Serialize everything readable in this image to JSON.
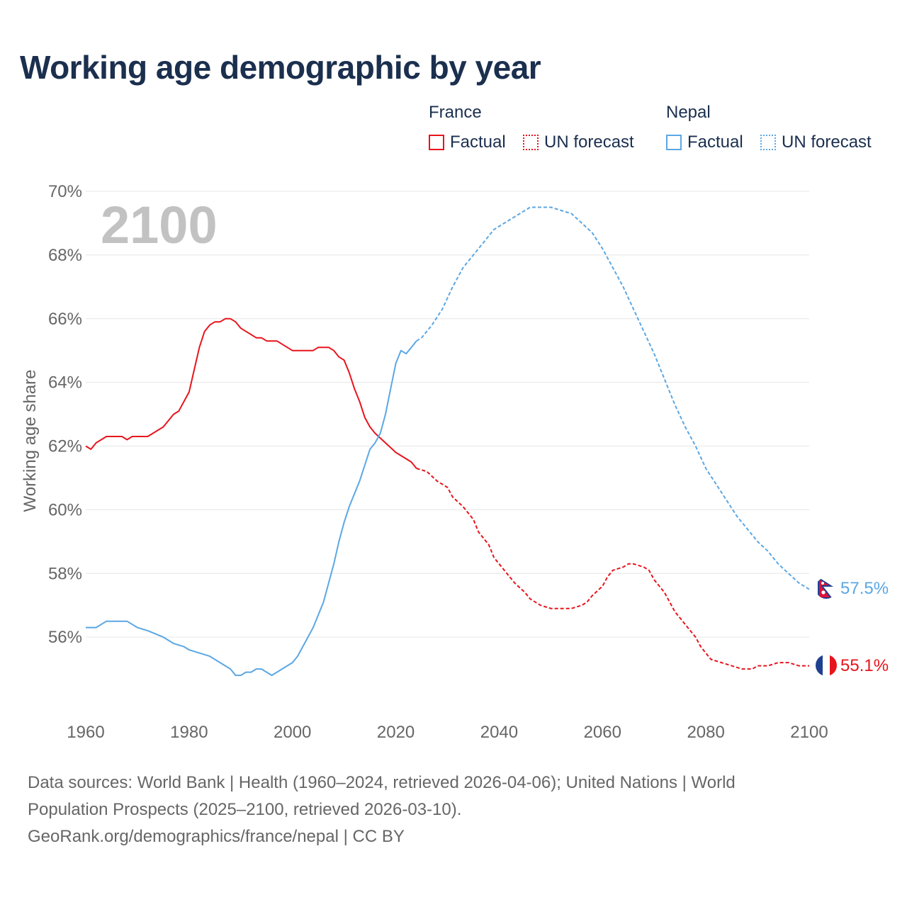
{
  "title": "Working age demographic by year",
  "legend": {
    "france_label": "France",
    "nepal_label": "Nepal",
    "factual_label": "Factual",
    "forecast_label": "UN forecast"
  },
  "colors": {
    "france": "#e8141c",
    "nepal": "#5ba7e4",
    "grid": "#e6e6e6",
    "axis_text": "#666666",
    "year_watermark": "#c2c2c2"
  },
  "year_label": "2100",
  "footer": {
    "line1": "Data sources: World Bank | Health (1960–2024, retrieved 2026-04-06); United Nations | World",
    "line2": "Population Prospects (2025–2100, retrieved 2026-03-10).",
    "line3": "GeoRank.org/demographics/france/nepal | CC BY"
  },
  "chart_data": {
    "type": "line",
    "title": "Working age demographic by year",
    "xlabel": "",
    "ylabel": "Working age share",
    "xlim": [
      1960,
      2100
    ],
    "ylim": [
      54,
      70
    ],
    "x_ticks": [
      1960,
      1980,
      2000,
      2020,
      2040,
      2060,
      2080,
      2100
    ],
    "x_tick_labels": [
      "1960",
      "1980",
      "2000",
      "2020",
      "2040",
      "2060",
      "2080",
      "2100"
    ],
    "y_ticks": [
      56,
      58,
      60,
      62,
      64,
      66,
      68,
      70
    ],
    "y_tick_labels": [
      "56%",
      "58%",
      "60%",
      "62%",
      "64%",
      "66%",
      "68%",
      "70%"
    ],
    "series": [
      {
        "name": "France Factual",
        "country": "France",
        "kind": "factual",
        "points": [
          [
            1960,
            62.0
          ],
          [
            1961,
            61.9
          ],
          [
            1962,
            62.1
          ],
          [
            1964,
            62.3
          ],
          [
            1966,
            62.3
          ],
          [
            1967,
            62.3
          ],
          [
            1968,
            62.2
          ],
          [
            1969,
            62.3
          ],
          [
            1972,
            62.3
          ],
          [
            1974,
            62.5
          ],
          [
            1975,
            62.6
          ],
          [
            1977,
            63.0
          ],
          [
            1978,
            63.1
          ],
          [
            1980,
            63.7
          ],
          [
            1981,
            64.4
          ],
          [
            1982,
            65.1
          ],
          [
            1983,
            65.6
          ],
          [
            1984,
            65.8
          ],
          [
            1985,
            65.9
          ],
          [
            1986,
            65.9
          ],
          [
            1987,
            66.0
          ],
          [
            1988,
            66.0
          ],
          [
            1989,
            65.9
          ],
          [
            1990,
            65.7
          ],
          [
            1991,
            65.6
          ],
          [
            1993,
            65.4
          ],
          [
            1994,
            65.4
          ],
          [
            1995,
            65.3
          ],
          [
            1997,
            65.3
          ],
          [
            1998,
            65.2
          ],
          [
            2000,
            65.0
          ],
          [
            2002,
            65.0
          ],
          [
            2004,
            65.0
          ],
          [
            2005,
            65.1
          ],
          [
            2007,
            65.1
          ],
          [
            2008,
            65.0
          ],
          [
            2009,
            64.8
          ],
          [
            2010,
            64.7
          ],
          [
            2011,
            64.3
          ],
          [
            2012,
            63.8
          ],
          [
            2013,
            63.4
          ],
          [
            2014,
            62.9
          ],
          [
            2015,
            62.6
          ],
          [
            2016,
            62.4
          ],
          [
            2018,
            62.1
          ],
          [
            2020,
            61.8
          ],
          [
            2022,
            61.6
          ],
          [
            2023,
            61.5
          ],
          [
            2024,
            61.3
          ]
        ]
      },
      {
        "name": "France UN forecast",
        "country": "France",
        "kind": "forecast",
        "points": [
          [
            2024,
            61.3
          ],
          [
            2026,
            61.2
          ],
          [
            2028,
            60.9
          ],
          [
            2030,
            60.7
          ],
          [
            2031,
            60.4
          ],
          [
            2033,
            60.1
          ],
          [
            2035,
            59.7
          ],
          [
            2036,
            59.3
          ],
          [
            2038,
            58.9
          ],
          [
            2039,
            58.5
          ],
          [
            2041,
            58.1
          ],
          [
            2043,
            57.7
          ],
          [
            2045,
            57.4
          ],
          [
            2046,
            57.2
          ],
          [
            2048,
            57.0
          ],
          [
            2050,
            56.9
          ],
          [
            2052,
            56.9
          ],
          [
            2054,
            56.9
          ],
          [
            2056,
            57.0
          ],
          [
            2057,
            57.1
          ],
          [
            2058,
            57.3
          ],
          [
            2060,
            57.6
          ],
          [
            2061,
            57.9
          ],
          [
            2062,
            58.1
          ],
          [
            2064,
            58.2
          ],
          [
            2065,
            58.3
          ],
          [
            2066,
            58.3
          ],
          [
            2068,
            58.2
          ],
          [
            2069,
            58.1
          ],
          [
            2070,
            57.8
          ],
          [
            2072,
            57.4
          ],
          [
            2073,
            57.1
          ],
          [
            2074,
            56.8
          ],
          [
            2076,
            56.4
          ],
          [
            2078,
            56.0
          ],
          [
            2079,
            55.7
          ],
          [
            2080,
            55.5
          ],
          [
            2081,
            55.3
          ],
          [
            2083,
            55.2
          ],
          [
            2085,
            55.1
          ],
          [
            2087,
            55.0
          ],
          [
            2089,
            55.0
          ],
          [
            2090,
            55.1
          ],
          [
            2092,
            55.1
          ],
          [
            2094,
            55.2
          ],
          [
            2096,
            55.2
          ],
          [
            2098,
            55.1
          ],
          [
            2100,
            55.1
          ]
        ]
      },
      {
        "name": "Nepal Factual",
        "country": "Nepal",
        "kind": "factual",
        "points": [
          [
            1960,
            56.3
          ],
          [
            1962,
            56.3
          ],
          [
            1964,
            56.5
          ],
          [
            1968,
            56.5
          ],
          [
            1970,
            56.3
          ],
          [
            1972,
            56.2
          ],
          [
            1975,
            56.0
          ],
          [
            1977,
            55.8
          ],
          [
            1979,
            55.7
          ],
          [
            1980,
            55.6
          ],
          [
            1982,
            55.5
          ],
          [
            1984,
            55.4
          ],
          [
            1986,
            55.2
          ],
          [
            1988,
            55.0
          ],
          [
            1989,
            54.8
          ],
          [
            1990,
            54.8
          ],
          [
            1991,
            54.9
          ],
          [
            1992,
            54.9
          ],
          [
            1993,
            55.0
          ],
          [
            1994,
            55.0
          ],
          [
            1995,
            54.9
          ],
          [
            1996,
            54.8
          ],
          [
            1998,
            55.0
          ],
          [
            2000,
            55.2
          ],
          [
            2001,
            55.4
          ],
          [
            2002,
            55.7
          ],
          [
            2003,
            56.0
          ],
          [
            2004,
            56.3
          ],
          [
            2005,
            56.7
          ],
          [
            2006,
            57.1
          ],
          [
            2007,
            57.7
          ],
          [
            2008,
            58.3
          ],
          [
            2009,
            59.0
          ],
          [
            2010,
            59.6
          ],
          [
            2011,
            60.1
          ],
          [
            2012,
            60.5
          ],
          [
            2013,
            60.9
          ],
          [
            2014,
            61.4
          ],
          [
            2015,
            61.9
          ],
          [
            2016,
            62.1
          ],
          [
            2017,
            62.4
          ],
          [
            2018,
            63.0
          ],
          [
            2019,
            63.8
          ],
          [
            2020,
            64.6
          ],
          [
            2021,
            65.0
          ],
          [
            2022,
            64.9
          ],
          [
            2023,
            65.1
          ],
          [
            2024,
            65.3
          ]
        ]
      },
      {
        "name": "Nepal UN forecast",
        "country": "Nepal",
        "kind": "forecast",
        "points": [
          [
            2024,
            65.3
          ],
          [
            2025,
            65.4
          ],
          [
            2027,
            65.8
          ],
          [
            2029,
            66.3
          ],
          [
            2031,
            67.0
          ],
          [
            2033,
            67.6
          ],
          [
            2035,
            68.0
          ],
          [
            2037,
            68.4
          ],
          [
            2039,
            68.8
          ],
          [
            2041,
            69.0
          ],
          [
            2043,
            69.2
          ],
          [
            2045,
            69.4
          ],
          [
            2046,
            69.5
          ],
          [
            2048,
            69.5
          ],
          [
            2050,
            69.5
          ],
          [
            2052,
            69.4
          ],
          [
            2054,
            69.3
          ],
          [
            2056,
            69.0
          ],
          [
            2058,
            68.7
          ],
          [
            2060,
            68.2
          ],
          [
            2062,
            67.6
          ],
          [
            2064,
            67.0
          ],
          [
            2066,
            66.3
          ],
          [
            2068,
            65.6
          ],
          [
            2070,
            64.9
          ],
          [
            2072,
            64.1
          ],
          [
            2074,
            63.3
          ],
          [
            2076,
            62.6
          ],
          [
            2078,
            62.0
          ],
          [
            2080,
            61.3
          ],
          [
            2082,
            60.8
          ],
          [
            2084,
            60.3
          ],
          [
            2086,
            59.8
          ],
          [
            2088,
            59.4
          ],
          [
            2090,
            59.0
          ],
          [
            2092,
            58.7
          ],
          [
            2094,
            58.3
          ],
          [
            2096,
            58.0
          ],
          [
            2098,
            57.7
          ],
          [
            2100,
            57.5
          ]
        ]
      }
    ],
    "end_labels": [
      {
        "country": "Nepal",
        "value": 57.5,
        "label": "57.5%"
      },
      {
        "country": "France",
        "value": 55.1,
        "label": "55.1%"
      }
    ]
  }
}
